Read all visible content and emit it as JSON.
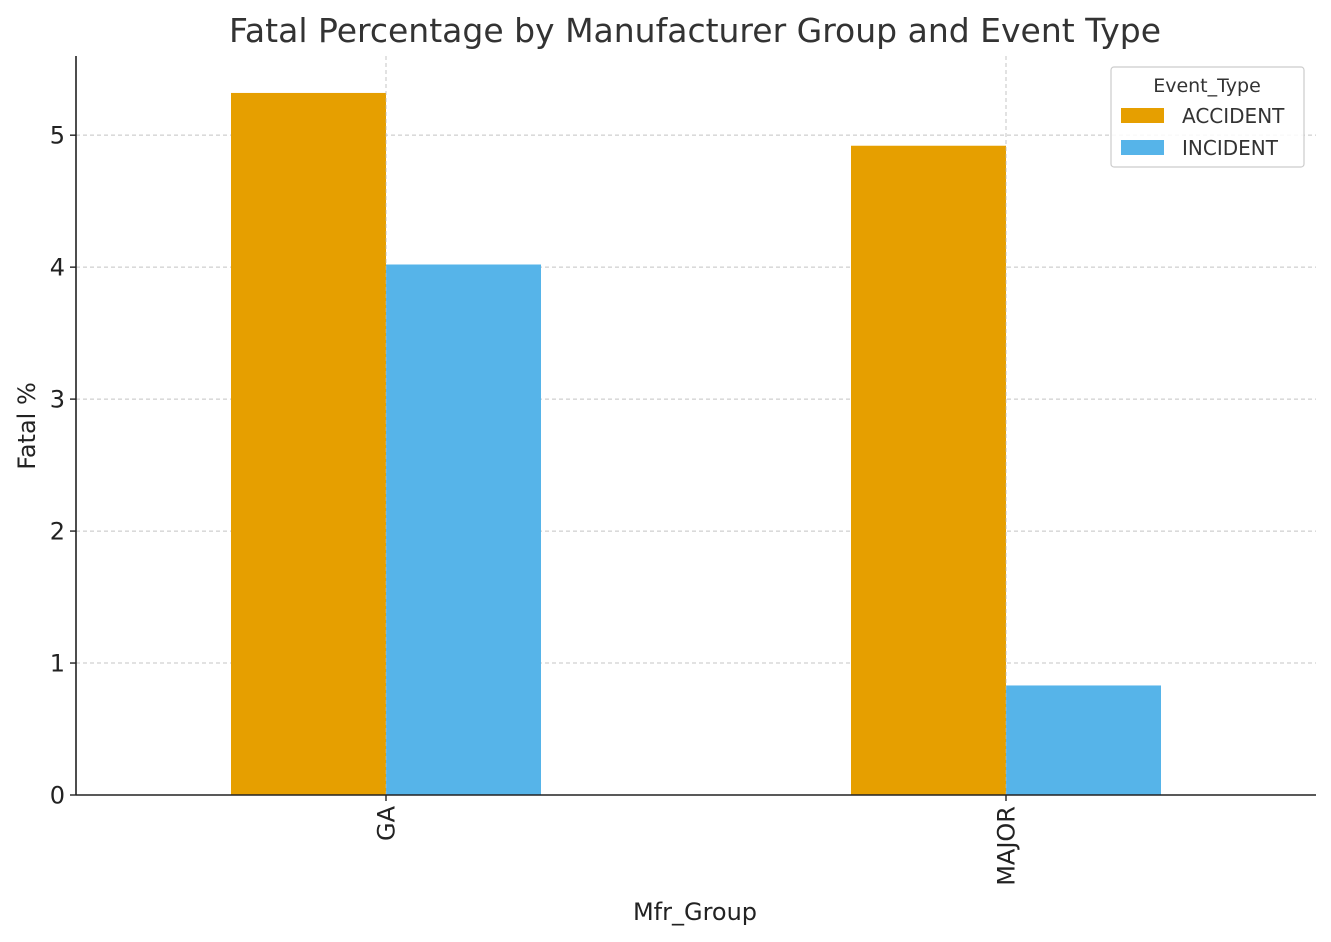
{
  "chart_data": {
    "type": "bar",
    "title": "Fatal Percentage by Manufacturer Group and Event Type",
    "xlabel": "Mfr_Group",
    "ylabel": "Fatal %",
    "categories": [
      "GA",
      "MAJOR"
    ],
    "series": [
      {
        "name": "ACCIDENT",
        "values": [
          5.32,
          4.92
        ],
        "color": "#E69F00"
      },
      {
        "name": "INCIDENT",
        "values": [
          4.02,
          0.83
        ],
        "color": "#56B4E9"
      }
    ],
    "ylim": [
      0,
      5.6
    ],
    "yticks": [
      "0",
      "1",
      "2",
      "3",
      "4",
      "5"
    ],
    "grid": true,
    "legend": {
      "title": "Event_Type",
      "position": "top-right"
    }
  }
}
